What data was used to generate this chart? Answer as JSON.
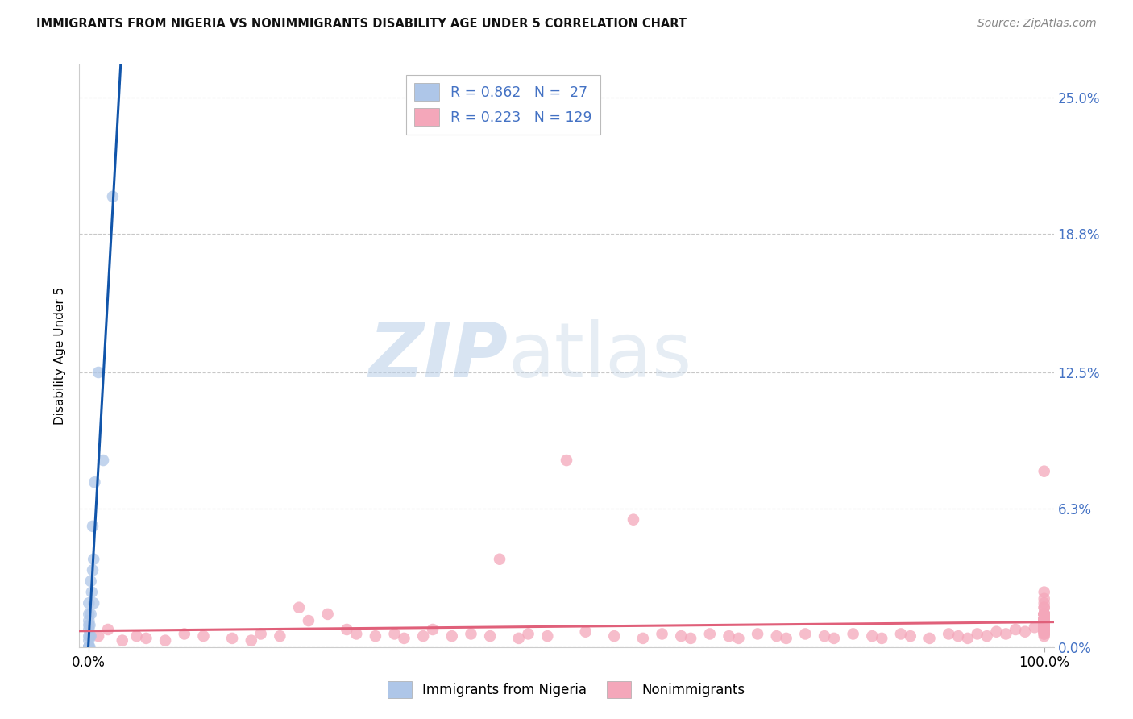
{
  "title": "IMMIGRANTS FROM NIGERIA VS NONIMMIGRANTS DISABILITY AGE UNDER 5 CORRELATION CHART",
  "source": "Source: ZipAtlas.com",
  "ylabel": "Disability Age Under 5",
  "ytick_labels": [
    "0.0%",
    "6.3%",
    "12.5%",
    "18.8%",
    "25.0%"
  ],
  "ytick_values": [
    0.0,
    6.3,
    12.5,
    18.8,
    25.0
  ],
  "xlim": [
    -1.0,
    101.0
  ],
  "ylim": [
    0.0,
    26.5
  ],
  "legend_r1": "R = 0.862",
  "legend_n1": "N =  27",
  "legend_r2": "R = 0.223",
  "legend_n2": "N = 129",
  "color_immigrants": "#aec6e8",
  "color_nonimmigrants": "#f4a7ba",
  "color_line_immigrants": "#1155aa",
  "color_line_nonimmigrants": "#e0607a",
  "watermark_zip": "ZIP",
  "watermark_atlas": "atlas",
  "background_color": "#ffffff",
  "grid_color": "#c8c8c8",
  "imm_x": [
    0.0,
    0.0,
    0.0,
    0.0,
    0.0,
    0.0,
    0.0,
    0.0,
    0.0,
    0.0,
    0.0,
    0.0,
    0.1,
    0.1,
    0.1,
    0.2,
    0.2,
    0.2,
    0.3,
    0.4,
    0.4,
    0.5,
    0.5,
    0.6,
    1.0,
    1.5,
    2.5
  ],
  "imm_y": [
    0.0,
    0.0,
    0.0,
    0.0,
    0.0,
    0.3,
    0.5,
    0.8,
    1.0,
    1.2,
    1.5,
    2.0,
    0.0,
    0.5,
    1.0,
    0.5,
    1.5,
    3.0,
    2.5,
    3.5,
    5.5,
    4.0,
    2.0,
    7.5,
    12.5,
    8.5,
    20.5
  ],
  "non_x": [
    1.0,
    2.0,
    3.5,
    5.0,
    6.0,
    8.0,
    10.0,
    12.0,
    15.0,
    17.0,
    18.0,
    20.0,
    22.0,
    23.0,
    25.0,
    27.0,
    28.0,
    30.0,
    32.0,
    33.0,
    35.0,
    36.0,
    38.0,
    40.0,
    42.0,
    43.0,
    45.0,
    46.0,
    48.0,
    50.0,
    52.0,
    55.0,
    57.0,
    58.0,
    60.0,
    62.0,
    63.0,
    65.0,
    67.0,
    68.0,
    70.0,
    72.0,
    73.0,
    75.0,
    77.0,
    78.0,
    80.0,
    82.0,
    83.0,
    85.0,
    86.0,
    88.0,
    90.0,
    91.0,
    92.0,
    93.0,
    94.0,
    95.0,
    96.0,
    97.0,
    98.0,
    99.0,
    100.0,
    100.0,
    100.0,
    100.0,
    100.0,
    100.0,
    100.0,
    100.0,
    100.0,
    100.0,
    100.0,
    100.0,
    100.0,
    100.0,
    100.0,
    100.0,
    100.0,
    100.0,
    100.0,
    100.0,
    100.0,
    100.0,
    100.0,
    100.0,
    100.0,
    100.0,
    100.0,
    100.0,
    100.0,
    100.0,
    100.0,
    100.0,
    100.0,
    100.0,
    100.0,
    100.0,
    100.0,
    100.0,
    100.0,
    100.0,
    100.0,
    100.0,
    100.0,
    100.0,
    100.0,
    100.0,
    100.0,
    100.0,
    100.0,
    100.0,
    100.0,
    100.0,
    100.0,
    100.0,
    100.0,
    100.0,
    100.0,
    100.0,
    100.0,
    100.0,
    100.0,
    100.0,
    100.0,
    100.0,
    100.0,
    100.0,
    100.0
  ],
  "non_y": [
    0.5,
    0.8,
    0.3,
    0.5,
    0.4,
    0.3,
    0.6,
    0.5,
    0.4,
    0.3,
    0.6,
    0.5,
    1.8,
    1.2,
    1.5,
    0.8,
    0.6,
    0.5,
    0.6,
    0.4,
    0.5,
    0.8,
    0.5,
    0.6,
    0.5,
    4.0,
    0.4,
    0.6,
    0.5,
    8.5,
    0.7,
    0.5,
    5.8,
    0.4,
    0.6,
    0.5,
    0.4,
    0.6,
    0.5,
    0.4,
    0.6,
    0.5,
    0.4,
    0.6,
    0.5,
    0.4,
    0.6,
    0.5,
    0.4,
    0.6,
    0.5,
    0.4,
    0.6,
    0.5,
    0.4,
    0.6,
    0.5,
    0.7,
    0.6,
    0.8,
    0.7,
    0.9,
    0.5,
    0.7,
    0.6,
    0.8,
    1.0,
    1.2,
    0.9,
    1.5,
    1.8,
    2.0,
    2.5,
    1.2,
    1.0,
    0.8,
    1.5,
    2.2,
    0.9,
    1.1,
    1.3,
    0.7,
    0.6,
    0.8,
    1.0,
    1.2,
    0.9,
    1.5,
    1.8,
    1.0,
    0.8,
    0.7,
    0.9,
    1.1,
    1.3,
    1.5,
    1.2,
    1.0,
    0.8,
    0.9,
    1.1,
    1.3,
    1.5,
    1.2,
    8.0,
    1.0,
    0.8,
    0.7,
    0.9,
    1.1,
    1.3,
    1.5,
    1.2,
    1.0,
    0.8,
    0.9,
    1.1,
    1.3,
    1.5,
    1.2,
    1.0,
    0.8,
    0.9,
    1.1,
    1.3,
    1.5,
    1.2,
    1.0,
    1.2
  ]
}
